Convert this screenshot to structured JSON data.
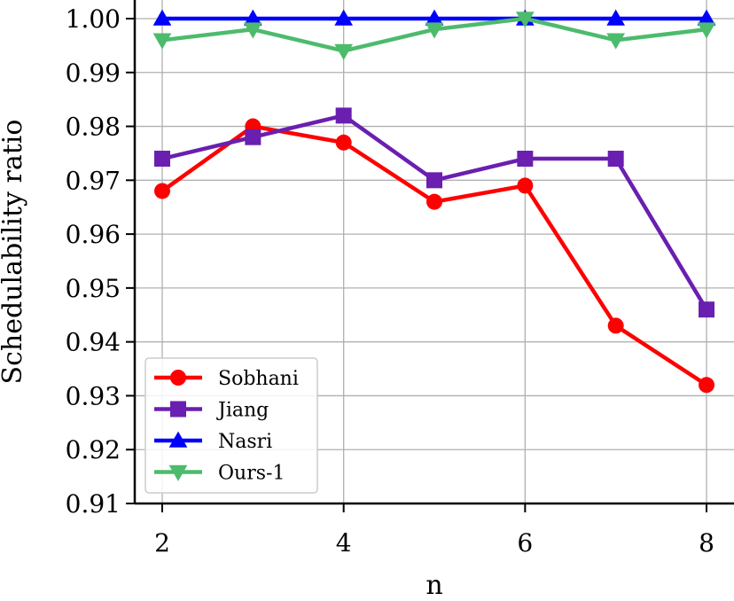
{
  "chart_data": {
    "type": "line",
    "title": "",
    "xlabel": "n",
    "ylabel": "Schedulability ratio",
    "x": [
      2,
      3,
      4,
      5,
      6,
      7,
      8
    ],
    "xticks": [
      "2",
      "4",
      "6",
      "8"
    ],
    "xlim": [
      1.7,
      8.3
    ],
    "yticks": [
      "0.91",
      "0.92",
      "0.93",
      "0.94",
      "0.95",
      "0.96",
      "0.97",
      "0.98",
      "0.99",
      "1.00"
    ],
    "ylim": [
      0.91,
      1.003
    ],
    "grid": true,
    "legend_position": "lower-left",
    "series": [
      {
        "name": "Sobhani",
        "color": "#ff0000",
        "marker": "circle",
        "values": [
          0.968,
          0.98,
          0.977,
          0.966,
          0.969,
          0.943,
          0.932
        ]
      },
      {
        "name": "Jiang",
        "color": "#6a1fb0",
        "marker": "square",
        "values": [
          0.974,
          0.978,
          0.982,
          0.97,
          0.974,
          0.974,
          0.946
        ]
      },
      {
        "name": "Nasri",
        "color": "#0000ff",
        "marker": "triangle-up",
        "values": [
          1.0,
          1.0,
          1.0,
          1.0,
          1.0,
          1.0,
          1.0
        ]
      },
      {
        "name": "Ours-1",
        "color": "#4cbb6c",
        "marker": "triangle-down",
        "values": [
          0.996,
          0.998,
          0.994,
          0.998,
          1.0,
          0.996,
          0.998
        ]
      }
    ]
  }
}
